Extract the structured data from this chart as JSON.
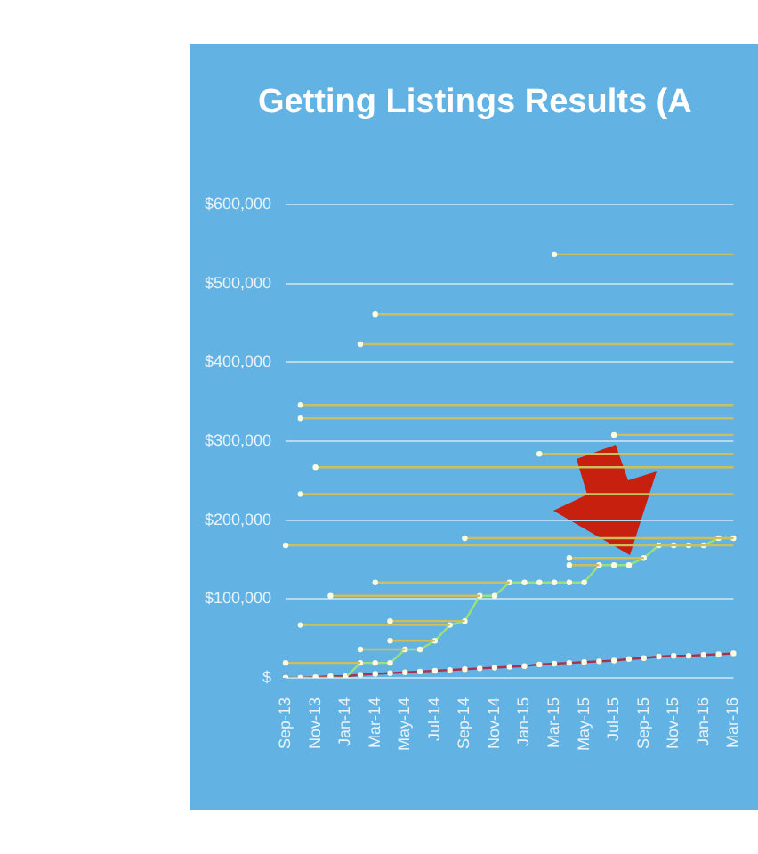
{
  "chart_data": {
    "type": "line",
    "title": "Getting Listings Results (A",
    "categories": [
      "Sep-13",
      null,
      "Nov-13",
      null,
      "Jan-14",
      null,
      "Mar-14",
      null,
      "May-14",
      null,
      "Jul-14",
      null,
      "Sep-14",
      null,
      "Nov-14",
      null,
      "Jan-15",
      null,
      "Mar-15",
      null,
      "May-15",
      null,
      "Jul-15",
      null,
      "Sep-15",
      null,
      "Nov-15",
      null,
      "Jan-16",
      null,
      "Mar-16"
    ],
    "ylim": [
      0,
      600000
    ],
    "yticks": [
      {
        "value": 0,
        "label": "$"
      },
      {
        "value": 100000,
        "label": "$100,000"
      },
      {
        "value": 200000,
        "label": "$200,000"
      },
      {
        "value": 300000,
        "label": "$300,000"
      },
      {
        "value": 400000,
        "label": "$400,000"
      },
      {
        "value": 500000,
        "label": "$500,000"
      },
      {
        "value": 600000,
        "label": "$600,000"
      }
    ],
    "grid": "y",
    "legend": false,
    "series": [
      {
        "color": "#cdbf5e",
        "values": [
          null,
          null,
          null,
          null,
          null,
          null,
          null,
          null,
          null,
          null,
          null,
          null,
          null,
          null,
          null,
          null,
          null,
          null,
          537000,
          537000,
          537000,
          537000,
          537000,
          537000,
          537000,
          537000,
          537000,
          537000,
          537000,
          537000,
          537000
        ]
      },
      {
        "color": "#cdbf5e",
        "values": [
          null,
          null,
          null,
          null,
          null,
          null,
          461000,
          461000,
          461000,
          461000,
          461000,
          461000,
          461000,
          461000,
          461000,
          461000,
          461000,
          461000,
          461000,
          461000,
          461000,
          461000,
          461000,
          461000,
          461000,
          461000,
          461000,
          461000,
          461000,
          461000,
          461000
        ]
      },
      {
        "color": "#cdbf5e",
        "values": [
          null,
          null,
          null,
          null,
          null,
          423000,
          423000,
          423000,
          423000,
          423000,
          423000,
          423000,
          423000,
          423000,
          423000,
          423000,
          423000,
          423000,
          423000,
          423000,
          423000,
          423000,
          423000,
          423000,
          423000,
          423000,
          423000,
          423000,
          423000,
          423000,
          423000
        ]
      },
      {
        "color": "#cdbf5e",
        "values": [
          null,
          346000,
          346000,
          346000,
          346000,
          346000,
          346000,
          346000,
          346000,
          346000,
          346000,
          346000,
          346000,
          346000,
          346000,
          346000,
          346000,
          346000,
          346000,
          346000,
          346000,
          346000,
          346000,
          346000,
          346000,
          346000,
          346000,
          346000,
          346000,
          346000,
          346000
        ]
      },
      {
        "color": "#cdbf5e",
        "values": [
          null,
          329000,
          329000,
          329000,
          329000,
          329000,
          329000,
          329000,
          329000,
          329000,
          329000,
          329000,
          329000,
          329000,
          329000,
          329000,
          329000,
          329000,
          329000,
          329000,
          329000,
          329000,
          329000,
          329000,
          329000,
          329000,
          329000,
          329000,
          329000,
          329000,
          329000
        ]
      },
      {
        "color": "#cdbf5e",
        "values": [
          null,
          null,
          null,
          null,
          null,
          null,
          null,
          null,
          null,
          null,
          null,
          null,
          null,
          null,
          null,
          null,
          null,
          null,
          null,
          null,
          null,
          null,
          308000,
          308000,
          308000,
          308000,
          308000,
          308000,
          308000,
          308000,
          308000
        ]
      },
      {
        "color": "#cdbf5e",
        "values": [
          null,
          null,
          null,
          null,
          null,
          null,
          null,
          null,
          null,
          null,
          null,
          null,
          null,
          null,
          null,
          null,
          null,
          284000,
          284000,
          284000,
          284000,
          284000,
          284000,
          284000,
          284000,
          284000,
          284000,
          284000,
          284000,
          284000,
          284000
        ]
      },
      {
        "color": "#cdbf5e",
        "values": [
          null,
          null,
          267000,
          267000,
          267000,
          267000,
          267000,
          267000,
          267000,
          267000,
          267000,
          267000,
          267000,
          267000,
          267000,
          267000,
          267000,
          267000,
          267000,
          267000,
          267000,
          267000,
          267000,
          267000,
          267000,
          267000,
          267000,
          267000,
          267000,
          267000,
          267000
        ]
      },
      {
        "color": "#cdbf5e",
        "values": [
          null,
          233000,
          233000,
          233000,
          233000,
          233000,
          233000,
          233000,
          233000,
          233000,
          233000,
          233000,
          233000,
          233000,
          233000,
          233000,
          233000,
          233000,
          233000,
          233000,
          233000,
          233000,
          233000,
          233000,
          233000,
          233000,
          233000,
          233000,
          233000,
          233000,
          233000
        ]
      },
      {
        "color": "#cdbf5e",
        "values": [
          null,
          null,
          null,
          null,
          null,
          null,
          null,
          null,
          null,
          null,
          null,
          null,
          177000,
          177000,
          177000,
          177000,
          177000,
          177000,
          177000,
          177000,
          177000,
          177000,
          177000,
          177000,
          177000,
          177000,
          177000,
          177000,
          177000,
          177000,
          177000
        ]
      },
      {
        "color": "#cdbf5e",
        "values": [
          168000,
          168000,
          168000,
          168000,
          168000,
          168000,
          168000,
          168000,
          168000,
          168000,
          168000,
          168000,
          168000,
          168000,
          168000,
          168000,
          168000,
          168000,
          168000,
          168000,
          168000,
          168000,
          168000,
          168000,
          168000,
          168000,
          168000,
          168000,
          168000,
          168000,
          168000
        ]
      },
      {
        "color": "#cdbf5e",
        "values": [
          null,
          null,
          null,
          null,
          null,
          null,
          null,
          null,
          null,
          null,
          null,
          null,
          null,
          null,
          null,
          null,
          null,
          null,
          null,
          152000,
          152000,
          152000,
          152000,
          152000,
          152000,
          null,
          null,
          null,
          null,
          null,
          null
        ]
      },
      {
        "color": "#cfbd5a",
        "values": [
          null,
          null,
          null,
          null,
          null,
          null,
          null,
          null,
          null,
          null,
          null,
          null,
          null,
          null,
          null,
          null,
          null,
          null,
          null,
          143000,
          143000,
          143000,
          null,
          null,
          null,
          null,
          null,
          null,
          null,
          null,
          null
        ]
      },
      {
        "color": "#cdbf5e",
        "values": [
          null,
          null,
          null,
          null,
          null,
          null,
          121000,
          121000,
          121000,
          121000,
          121000,
          121000,
          121000,
          121000,
          121000,
          121000,
          null,
          null,
          null,
          null,
          null,
          null,
          null,
          null,
          null,
          null,
          null,
          null,
          null,
          null,
          null
        ]
      },
      {
        "color": "#cdbf5e",
        "values": [
          null,
          null,
          null,
          104000,
          104000,
          104000,
          104000,
          104000,
          104000,
          104000,
          104000,
          104000,
          104000,
          104000,
          null,
          null,
          null,
          null,
          null,
          null,
          null,
          null,
          null,
          null,
          null,
          null,
          null,
          null,
          null,
          null,
          null
        ]
      },
      {
        "color": "#cdbf5e",
        "values": [
          null,
          null,
          null,
          null,
          null,
          null,
          null,
          72000,
          72000,
          72000,
          72000,
          72000,
          72000,
          null,
          null,
          null,
          null,
          null,
          null,
          null,
          null,
          null,
          null,
          null,
          null,
          null,
          null,
          null,
          null,
          null,
          null
        ]
      },
      {
        "color": "#cbc162",
        "values": [
          null,
          67000,
          67000,
          67000,
          67000,
          67000,
          67000,
          67000,
          67000,
          67000,
          67000,
          67000,
          null,
          null,
          null,
          null,
          null,
          null,
          null,
          null,
          null,
          null,
          null,
          null,
          null,
          null,
          null,
          null,
          null,
          null,
          null
        ]
      },
      {
        "color": "#cdbf5e",
        "values": [
          null,
          null,
          null,
          null,
          null,
          null,
          null,
          47000,
          47000,
          47000,
          47000,
          null,
          null,
          null,
          null,
          null,
          null,
          null,
          null,
          null,
          null,
          null,
          null,
          null,
          null,
          null,
          null,
          null,
          null,
          null,
          null
        ]
      },
      {
        "color": "#cdbf5e",
        "values": [
          null,
          null,
          null,
          null,
          null,
          36000,
          36000,
          36000,
          36000,
          null,
          null,
          null,
          null,
          null,
          null,
          null,
          null,
          null,
          null,
          null,
          null,
          null,
          null,
          null,
          null,
          null,
          null,
          null,
          null,
          null,
          null
        ]
      },
      {
        "color": "#d0bc58",
        "values": [
          19000,
          19000,
          19000,
          19000,
          19000,
          19000,
          null,
          null,
          null,
          null,
          null,
          null,
          null,
          null,
          null,
          null,
          null,
          null,
          null,
          null,
          null,
          null,
          null,
          null,
          null,
          null,
          null,
          null,
          null,
          null,
          null
        ]
      },
      {
        "color": "#9be07a",
        "marker": "circle",
        "values": [
          0,
          0,
          0,
          0,
          0,
          19000,
          19000,
          19000,
          36000,
          36000,
          47000,
          67000,
          72000,
          104000,
          104000,
          121000,
          121000,
          121000,
          121000,
          121000,
          121000,
          143000,
          143000,
          143000,
          152000,
          168000,
          168000,
          168000,
          168000,
          177000,
          177000
        ]
      },
      {
        "color": "#a8324e",
        "marker": "circle",
        "values": [
          0,
          0,
          1000,
          2000,
          2000,
          4000,
          5000,
          6000,
          7000,
          8000,
          9000,
          10000,
          11000,
          12000,
          13000,
          14000,
          15000,
          17000,
          18000,
          19000,
          20000,
          21000,
          22000,
          24000,
          25000,
          27000,
          28000,
          28000,
          29000,
          30000,
          31000
        ]
      }
    ]
  }
}
